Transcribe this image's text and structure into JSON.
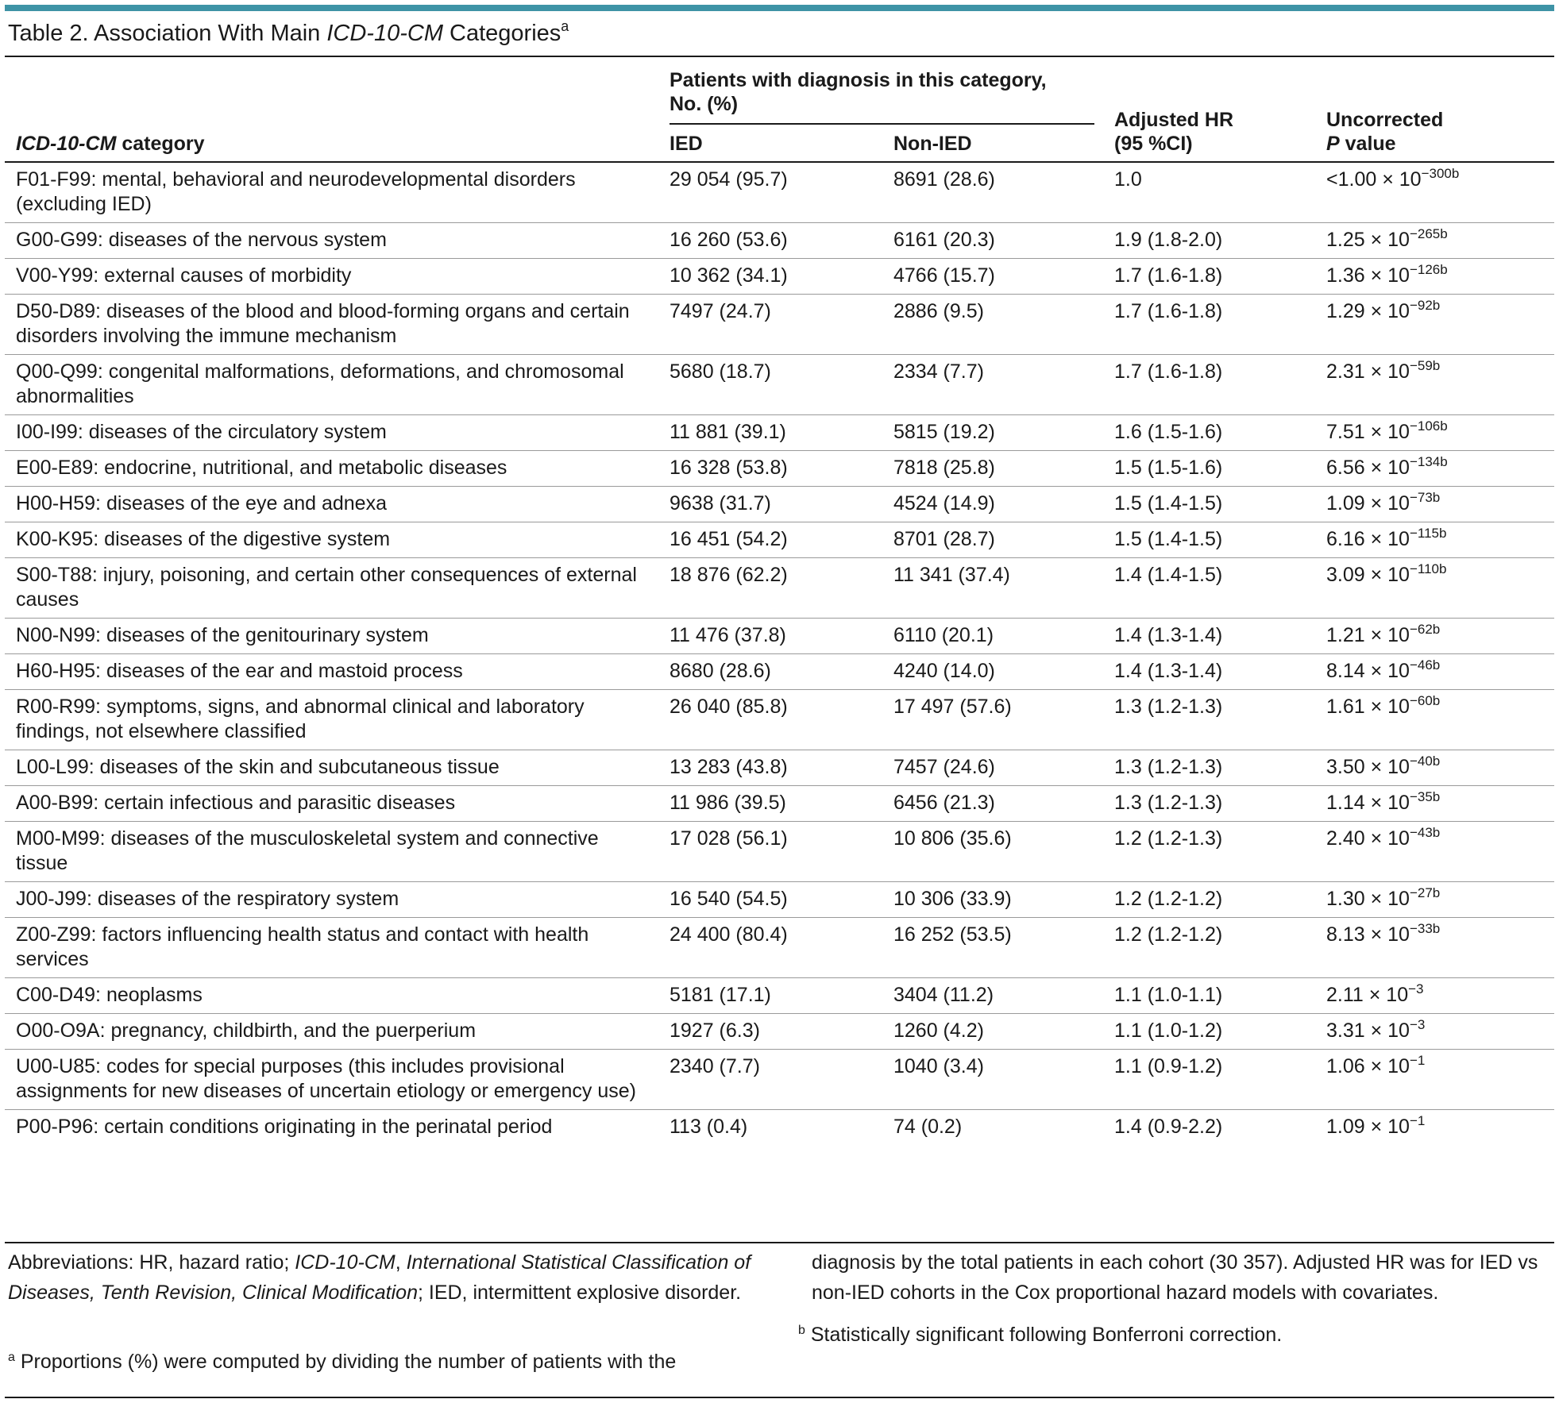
{
  "title": {
    "prefix": "Table 2. Association With Main ",
    "italic": "ICD-10-CM",
    "suffix": " Categories",
    "sup": "a"
  },
  "header": {
    "category_italic": "ICD-10-CM",
    "category_rest": " category",
    "group_line1": "Patients with diagnosis in this category,",
    "group_line2": "No. (%)",
    "ied": "IED",
    "non_ied": "Non-IED",
    "hr_line1": "Adjusted HR",
    "hr_line2": "(95 %CI)",
    "p_line1": "Uncorrected",
    "p_italic": "P",
    "p_rest": " value"
  },
  "rows": [
    {
      "category": "F01-F99: mental, behavioral and neurodevelopmental disorders (excluding IED)",
      "ied": "29 054 (95.7)",
      "non_ied": "8691 (28.6)",
      "hr": "1.0",
      "p_base": "<1.00 × 10",
      "p_exp": "−300b"
    },
    {
      "category": "G00-G99: diseases of the nervous system",
      "ied": "16 260 (53.6)",
      "non_ied": "6161 (20.3)",
      "hr": "1.9 (1.8-2.0)",
      "p_base": "1.25 × 10",
      "p_exp": "−265b"
    },
    {
      "category": "V00-Y99: external causes of morbidity",
      "ied": "10 362 (34.1)",
      "non_ied": "4766 (15.7)",
      "hr": "1.7 (1.6-1.8)",
      "p_base": "1.36 × 10",
      "p_exp": "−126b"
    },
    {
      "category": "D50-D89: diseases of the blood and blood-forming organs and certain disorders involving the immune mechanism",
      "ied": "7497 (24.7)",
      "non_ied": "2886 (9.5)",
      "hr": "1.7 (1.6-1.8)",
      "p_base": "1.29 × 10",
      "p_exp": "−92b"
    },
    {
      "category": "Q00-Q99: congenital malformations, deformations, and chromosomal abnormalities",
      "ied": "5680 (18.7)",
      "non_ied": "2334 (7.7)",
      "hr": "1.7 (1.6-1.8)",
      "p_base": "2.31 × 10",
      "p_exp": "−59b"
    },
    {
      "category": "I00-I99: diseases of the circulatory system",
      "ied": "11 881 (39.1)",
      "non_ied": "5815 (19.2)",
      "hr": "1.6 (1.5-1.6)",
      "p_base": "7.51 × 10",
      "p_exp": "−106b"
    },
    {
      "category": "E00-E89: endocrine, nutritional, and metabolic diseases",
      "ied": "16 328 (53.8)",
      "non_ied": "7818 (25.8)",
      "hr": "1.5 (1.5-1.6)",
      "p_base": "6.56 × 10",
      "p_exp": "−134b"
    },
    {
      "category": "H00-H59: diseases of the eye and adnexa",
      "ied": "9638 (31.7)",
      "non_ied": "4524 (14.9)",
      "hr": "1.5 (1.4-1.5)",
      "p_base": "1.09 × 10",
      "p_exp": "−73b"
    },
    {
      "category": "K00-K95: diseases of the digestive system",
      "ied": "16 451 (54.2)",
      "non_ied": "8701 (28.7)",
      "hr": "1.5 (1.4-1.5)",
      "p_base": "6.16 × 10",
      "p_exp": "−115b"
    },
    {
      "category": "S00-T88: injury, poisoning, and certain other consequences of external causes",
      "ied": "18 876 (62.2)",
      "non_ied": "11 341 (37.4)",
      "hr": "1.4 (1.4-1.5)",
      "p_base": "3.09 × 10",
      "p_exp": "−110b"
    },
    {
      "category": "N00-N99: diseases of the genitourinary system",
      "ied": "11 476 (37.8)",
      "non_ied": "6110 (20.1)",
      "hr": "1.4 (1.3-1.4)",
      "p_base": "1.21 × 10",
      "p_exp": "−62b"
    },
    {
      "category": "H60-H95: diseases of the ear and mastoid process",
      "ied": "8680 (28.6)",
      "non_ied": "4240 (14.0)",
      "hr": "1.4 (1.3-1.4)",
      "p_base": "8.14 × 10",
      "p_exp": "−46b"
    },
    {
      "category": "R00-R99: symptoms, signs, and abnormal clinical and laboratory findings, not elsewhere classified",
      "ied": "26 040 (85.8)",
      "non_ied": "17 497 (57.6)",
      "hr": "1.3 (1.2-1.3)",
      "p_base": "1.61 × 10",
      "p_exp": "−60b"
    },
    {
      "category": "L00-L99: diseases of the skin and subcutaneous tissue",
      "ied": "13 283 (43.8)",
      "non_ied": "7457 (24.6)",
      "hr": "1.3 (1.2-1.3)",
      "p_base": "3.50 × 10",
      "p_exp": "−40b"
    },
    {
      "category": "A00-B99: certain infectious and parasitic diseases",
      "ied": "11 986 (39.5)",
      "non_ied": "6456 (21.3)",
      "hr": "1.3 (1.2-1.3)",
      "p_base": "1.14 × 10",
      "p_exp": "−35b"
    },
    {
      "category": "M00-M99: diseases of the musculoskeletal system and connective tissue",
      "ied": "17 028 (56.1)",
      "non_ied": "10 806 (35.6)",
      "hr": "1.2 (1.2-1.3)",
      "p_base": "2.40 × 10",
      "p_exp": "−43b"
    },
    {
      "category": "J00-J99: diseases of the respiratory system",
      "ied": "16 540 (54.5)",
      "non_ied": "10 306 (33.9)",
      "hr": "1.2 (1.2-1.2)",
      "p_base": "1.30 × 10",
      "p_exp": "−27b"
    },
    {
      "category": "Z00-Z99: factors influencing health status and contact with health services",
      "ied": "24 400 (80.4)",
      "non_ied": "16 252 (53.5)",
      "hr": "1.2 (1.2-1.2)",
      "p_base": "8.13 × 10",
      "p_exp": "−33b"
    },
    {
      "category": "C00-D49: neoplasms",
      "ied": "5181 (17.1)",
      "non_ied": "3404 (11.2)",
      "hr": "1.1 (1.0-1.1)",
      "p_base": "2.11 × 10",
      "p_exp": "−3"
    },
    {
      "category": "O00-O9A: pregnancy, childbirth, and the puerperium",
      "ied": "1927 (6.3)",
      "non_ied": "1260 (4.2)",
      "hr": "1.1 (1.0-1.2)",
      "p_base": "3.31 × 10",
      "p_exp": "−3"
    },
    {
      "category": "U00-U85: codes for special purposes (this includes provisional assignments for new diseases of uncertain etiology or emergency use)",
      "ied": "2340 (7.7)",
      "non_ied": "1040 (3.4)",
      "hr": "1.1 (0.9-1.2)",
      "p_base": "1.06 × 10",
      "p_exp": "−1"
    },
    {
      "category": "P00-P96: certain conditions originating in the perinatal period",
      "ied": "113 (0.4)",
      "non_ied": "74 (0.2)",
      "hr": "1.4 (0.9-2.2)",
      "p_base": "1.09 × 10",
      "p_exp": "−1"
    }
  ],
  "footnotes": {
    "abbr_lead": "Abbreviations: HR, hazard ratio; ",
    "abbr_italic1": "ICD-10-CM",
    "abbr_comma": ", ",
    "abbr_italic2": "International Statistical Classification of Diseases, Tenth Revision, Clinical Modification",
    "abbr_tail": "; IED, intermittent explosive disorder.",
    "a_mark": "a",
    "a_text": " Proportions (%) were computed by dividing the number of patients with the",
    "a_cont": "diagnosis by the total patients in each cohort (30 357). Adjusted HR was for IED vs non-IED cohorts in the Cox proportional hazard models with covariates.",
    "b_mark": "b",
    "b_text": " Statistically significant following Bonferroni correction."
  }
}
